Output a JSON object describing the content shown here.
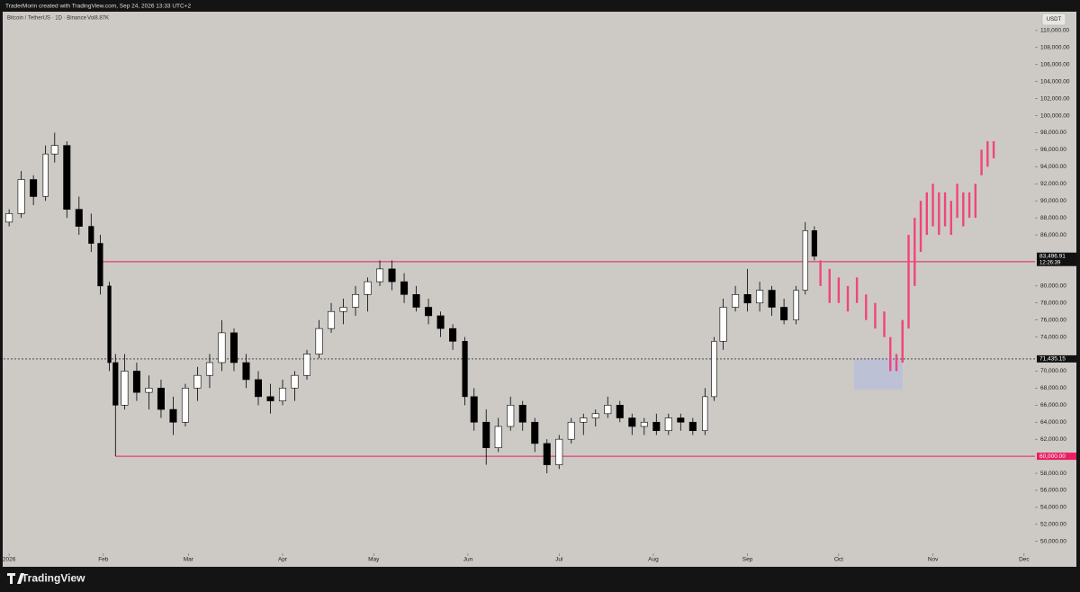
{
  "header": {
    "credit": "TraderMorin created with TradingView.com, Sep 24, 2026 13:33 UTC+2",
    "symbol": "Bitcoin / TetherUS · 1D · Binance",
    "volume": "Vol8.87K",
    "currency": "USDT"
  },
  "footer": {
    "brand": "TradingView"
  },
  "chart_data": {
    "type": "candlestick",
    "up_color": "#ffffff",
    "down_color": "#000000",
    "wick_color": "#000000",
    "x": [
      0,
      4,
      8,
      12,
      15,
      19,
      23,
      27,
      30,
      33,
      35,
      38,
      42,
      46,
      50,
      54,
      58,
      62,
      66,
      70,
      74,
      78,
      82,
      86,
      90,
      94,
      98,
      102,
      106,
      110,
      114,
      118,
      122,
      126,
      130,
      134,
      138,
      142,
      146,
      150,
      153,
      157,
      161,
      165,
      169,
      173,
      177,
      181,
      185,
      189,
      193,
      197,
      201,
      205,
      209,
      213,
      217,
      221,
      225,
      229,
      232,
      235,
      239,
      243,
      247,
      251,
      255,
      259,
      262,
      265
    ],
    "open": [
      87500,
      88500,
      92500,
      90500,
      95500,
      96500,
      89000,
      87000,
      85000,
      80000,
      71000,
      66000,
      70000,
      67500,
      68000,
      65500,
      64000,
      68000,
      69500,
      71000,
      74500,
      71000,
      69000,
      67000,
      66500,
      68000,
      69500,
      72000,
      75000,
      77000,
      77500,
      79000,
      80500,
      82000,
      80500,
      79000,
      77500,
      76500,
      75000,
      73500,
      67000,
      64000,
      61000,
      63500,
      66000,
      64000,
      61500,
      59000,
      62000,
      64000,
      64500,
      65000,
      66000,
      64500,
      63500,
      64000,
      63000,
      64500,
      64000,
      63000,
      67000,
      73500,
      77500,
      79000,
      78000,
      79500,
      77500,
      76000,
      79500,
      86500
    ],
    "high": [
      89000,
      93500,
      93000,
      96500,
      98000,
      97000,
      90500,
      88500,
      86000,
      80500,
      72000,
      72000,
      71000,
      69500,
      69000,
      67000,
      68500,
      70500,
      72000,
      76000,
      75000,
      72000,
      70000,
      68500,
      69000,
      70000,
      72500,
      76000,
      78000,
      78500,
      80000,
      81000,
      83000,
      83000,
      81500,
      80000,
      78500,
      77000,
      75500,
      74000,
      68000,
      65500,
      64500,
      67000,
      66500,
      64500,
      62000,
      62500,
      64500,
      65000,
      65500,
      67000,
      66500,
      65000,
      64500,
      65000,
      65000,
      65000,
      64500,
      68000,
      74000,
      78500,
      80000,
      82000,
      80500,
      80000,
      78500,
      80000,
      87500,
      87000
    ],
    "low": [
      87000,
      88000,
      89500,
      90000,
      94500,
      88000,
      86000,
      84000,
      79000,
      70000,
      60000,
      65500,
      66500,
      65500,
      64500,
      62500,
      63500,
      66500,
      68000,
      70000,
      70000,
      68000,
      66000,
      65000,
      66000,
      66500,
      69000,
      71500,
      74500,
      75500,
      76500,
      77000,
      80000,
      79500,
      78000,
      77000,
      75500,
      74000,
      72500,
      66000,
      63000,
      59000,
      60500,
      63000,
      63000,
      60500,
      58000,
      58500,
      61500,
      62500,
      63500,
      64500,
      64000,
      62500,
      62500,
      62500,
      62500,
      63000,
      62500,
      62500,
      66500,
      72500,
      77000,
      77000,
      77000,
      76500,
      75500,
      75500,
      79000,
      83000
    ],
    "close": [
      88500,
      92500,
      90500,
      95500,
      96500,
      89000,
      87000,
      85000,
      80000,
      71000,
      66000,
      70000,
      67500,
      68000,
      65500,
      64000,
      68000,
      69500,
      71000,
      74500,
      71000,
      69000,
      67000,
      66500,
      68000,
      69500,
      72000,
      75000,
      77000,
      77500,
      79000,
      80500,
      82000,
      80500,
      79000,
      77500,
      76500,
      75000,
      73500,
      67000,
      64000,
      61000,
      63500,
      66000,
      64000,
      61500,
      59000,
      62000,
      64000,
      64500,
      65000,
      66000,
      64500,
      63500,
      64000,
      63000,
      64500,
      64000,
      63000,
      67000,
      73500,
      77500,
      79000,
      78000,
      79500,
      77500,
      76000,
      79500,
      86500,
      83497
    ],
    "projection": {
      "color": "#f0457a",
      "x": [
        267,
        270,
        273,
        276,
        279,
        282,
        285,
        288,
        290,
        292,
        294,
        296,
        298,
        300,
        302,
        304,
        306,
        308,
        310,
        312,
        314,
        316,
        318,
        320,
        322,
        324
      ],
      "low": [
        80000,
        78000,
        78000,
        77000,
        78000,
        76000,
        75000,
        74000,
        70000,
        70000,
        71000,
        75000,
        80000,
        84000,
        86000,
        87000,
        86000,
        87000,
        86000,
        88000,
        87000,
        88000,
        88000,
        93000,
        94000,
        95000
      ],
      "high": [
        83000,
        82000,
        81000,
        80000,
        81000,
        79000,
        78000,
        77000,
        74000,
        72000,
        76000,
        86000,
        88000,
        90000,
        91000,
        92000,
        91000,
        91000,
        90000,
        92000,
        91000,
        91000,
        92000,
        96000,
        97000,
        97000
      ]
    },
    "zone": {
      "x": [
        278,
        294
      ],
      "y": [
        67800,
        71400
      ],
      "color": "#b9c0d8"
    },
    "levels": [
      {
        "value": 82843,
        "label": "82,843.00",
        "color": "#e91e63",
        "start": 30
      },
      {
        "value": 60000,
        "label": "60,000.00",
        "color": "#e91e63",
        "start": 35
      }
    ],
    "dashed_level": {
      "value": 71435.15,
      "label": "71,435.15",
      "color": "#000000"
    },
    "last_price": {
      "value": 83496.91,
      "label": "83,496.91",
      "countdown": "12:26:39"
    },
    "xlim": [
      -3,
      337.6
    ],
    "ylim": [
      48600,
      112000
    ],
    "xticks": [
      {
        "value": 0,
        "label": "2026"
      },
      {
        "value": 31,
        "label": "Feb"
      },
      {
        "value": 59,
        "label": "Mar"
      },
      {
        "value": 90,
        "label": "Apr"
      },
      {
        "value": 120,
        "label": "May"
      },
      {
        "value": 151,
        "label": "Jun"
      },
      {
        "value": 181,
        "label": "Jul"
      },
      {
        "value": 212,
        "label": "Aug"
      },
      {
        "value": 243,
        "label": "Sep"
      },
      {
        "value": 273,
        "label": "Oct"
      },
      {
        "value": 304,
        "label": "Nov"
      },
      {
        "value": 334,
        "label": "Dec"
      }
    ],
    "yticks": [
      {
        "value": 50000,
        "label": "50,000.00"
      },
      {
        "value": 52000,
        "label": "52,000.00"
      },
      {
        "value": 54000,
        "label": "54,000.00"
      },
      {
        "value": 56000,
        "label": "56,000.00"
      },
      {
        "value": 58000,
        "label": "58,000.00"
      },
      {
        "value": 62000,
        "label": "62,000.00"
      },
      {
        "value": 64000,
        "label": "64,000.00"
      },
      {
        "value": 66000,
        "label": "66,000.00"
      },
      {
        "value": 68000,
        "label": "68,000.00"
      },
      {
        "value": 70000,
        "label": "70,000.00"
      },
      {
        "value": 74000,
        "label": "74,000.00"
      },
      {
        "value": 76000,
        "label": "76,000.00"
      },
      {
        "value": 78000,
        "label": "78,000.00"
      },
      {
        "value": 80000,
        "label": "80,000.00"
      },
      {
        "value": 86000,
        "label": "86,000.00"
      },
      {
        "value": 88000,
        "label": "88,000.00"
      },
      {
        "value": 90000,
        "label": "90,000.00"
      },
      {
        "value": 92000,
        "label": "92,000.00"
      },
      {
        "value": 94000,
        "label": "94,000.00"
      },
      {
        "value": 96000,
        "label": "96,000.00"
      },
      {
        "value": 98000,
        "label": "98,000.00"
      },
      {
        "value": 100000,
        "label": "100,000.00"
      },
      {
        "value": 102000,
        "label": "102,000.00"
      },
      {
        "value": 104000,
        "label": "104,000.00"
      },
      {
        "value": 106000,
        "label": "106,000.00"
      },
      {
        "value": 108000,
        "label": "108,000.00"
      },
      {
        "value": 110000,
        "label": "110,000.00"
      }
    ],
    "grid": false
  }
}
